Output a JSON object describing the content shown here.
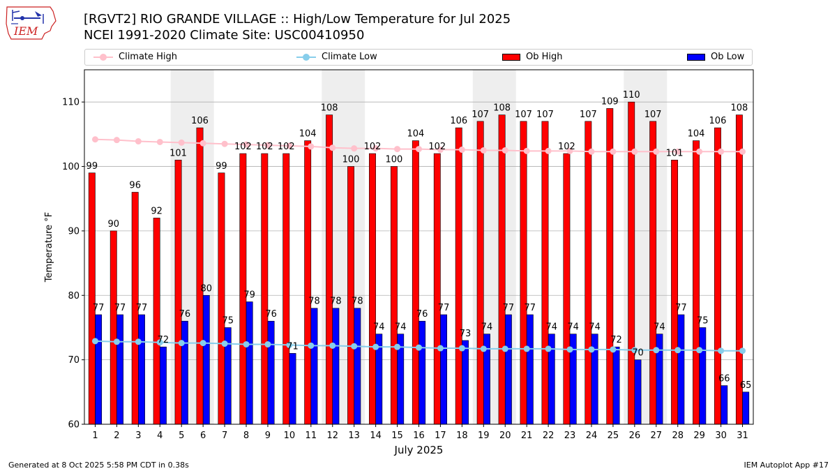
{
  "header": {
    "title_line1": "[RGVT2] RIO GRANDE VILLAGE :: High/Low Temperature for Jul 2025",
    "title_line2": "NCEI 1991-2020 Climate Site: USC00410950",
    "logo_text": "IEM"
  },
  "legend": {
    "climate_high": "Climate High",
    "climate_low": "Climate Low",
    "ob_high": "Ob High",
    "ob_low": "Ob Low"
  },
  "colors": {
    "ob_high": "#ff0000",
    "ob_low": "#0000ff",
    "climate_high": "#ffc0cb",
    "climate_low": "#87ceeb",
    "weekend_shade": "#eeeeee",
    "grid": "#b0b0b0"
  },
  "footer": {
    "left": "Generated at 8 Oct 2025 5:58 PM CDT in 0.38s",
    "right": "IEM Autoplot App #17"
  },
  "chart_data": {
    "type": "bar",
    "title": "[RGVT2] RIO GRANDE VILLAGE :: High/Low Temperature for Jul 2025",
    "subtitle": "NCEI 1991-2020 Climate Site: USC00410950",
    "xlabel": "July 2025",
    "ylabel": "Temperature °F",
    "ylim": [
      60,
      115
    ],
    "yticks": [
      60,
      70,
      80,
      90,
      100,
      110
    ],
    "grid": "horizontal",
    "legend_position": "top",
    "categories": [
      "1",
      "2",
      "3",
      "4",
      "5",
      "6",
      "7",
      "8",
      "9",
      "10",
      "11",
      "12",
      "13",
      "14",
      "15",
      "16",
      "17",
      "18",
      "19",
      "20",
      "21",
      "22",
      "23",
      "24",
      "25",
      "26",
      "27",
      "28",
      "29",
      "30",
      "31"
    ],
    "shaded_weekend_days": [
      [
        5,
        6
      ],
      [
        12,
        13
      ],
      [
        19,
        20
      ],
      [
        26,
        27
      ]
    ],
    "series": [
      {
        "name": "Ob High",
        "kind": "bar",
        "values": [
          99,
          90,
          96,
          92,
          101,
          106,
          99,
          102,
          102,
          102,
          104,
          108,
          100,
          102,
          100,
          104,
          102,
          106,
          107,
          108,
          107,
          107,
          102,
          107,
          109,
          110,
          107,
          101,
          104,
          106,
          108
        ]
      },
      {
        "name": "Ob Low",
        "kind": "bar",
        "values": [
          77,
          77,
          77,
          72,
          76,
          80,
          75,
          79,
          76,
          71,
          78,
          78,
          78,
          74,
          74,
          76,
          77,
          73,
          74,
          77,
          77,
          74,
          74,
          74,
          72,
          70,
          74,
          77,
          75,
          66,
          65
        ]
      },
      {
        "name": "Climate High",
        "kind": "line",
        "values": [
          104.2,
          104.1,
          103.9,
          103.8,
          103.7,
          103.6,
          103.5,
          103.4,
          103.3,
          103.2,
          103.1,
          102.9,
          102.8,
          102.8,
          102.7,
          102.7,
          102.6,
          102.6,
          102.5,
          102.5,
          102.4,
          102.4,
          102.4,
          102.3,
          102.3,
          102.3,
          102.3,
          102.3,
          102.3,
          102.3,
          102.3
        ]
      },
      {
        "name": "Climate Low",
        "kind": "line",
        "values": [
          72.9,
          72.8,
          72.8,
          72.7,
          72.6,
          72.6,
          72.5,
          72.4,
          72.4,
          72.3,
          72.2,
          72.2,
          72.1,
          72.0,
          72.0,
          71.9,
          71.8,
          71.8,
          71.7,
          71.7,
          71.7,
          71.7,
          71.6,
          71.6,
          71.6,
          71.5,
          71.5,
          71.5,
          71.5,
          71.4,
          71.4
        ]
      }
    ]
  }
}
